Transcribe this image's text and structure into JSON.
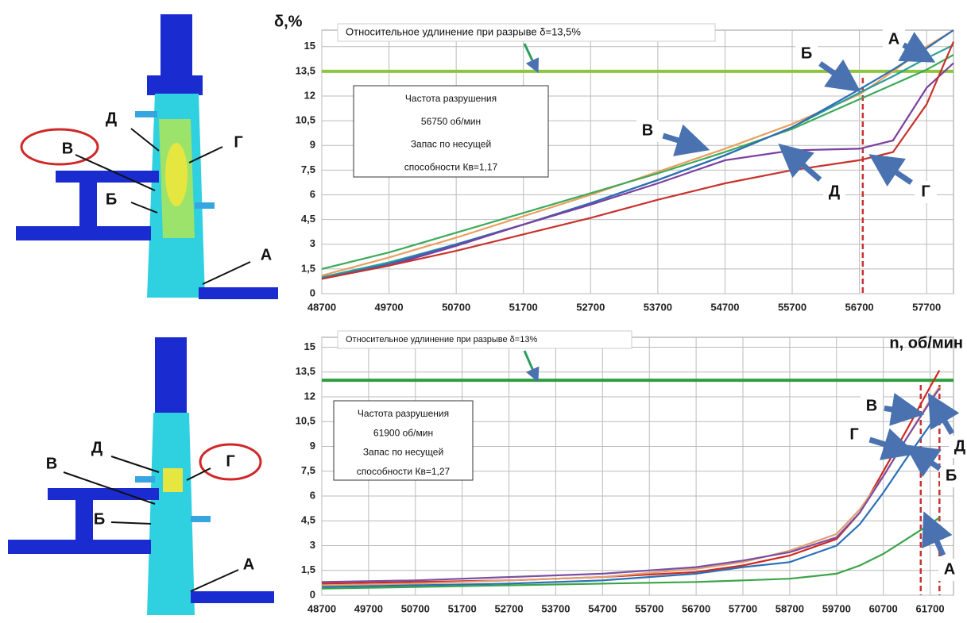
{
  "figures": [
    {
      "labels": [
        "Д",
        "В",
        "Г",
        "Б",
        "А"
      ]
    },
    {
      "labels": [
        "Д",
        "В",
        "Г",
        "Б",
        "А"
      ]
    }
  ],
  "chart_data": [
    {
      "type": "line",
      "y_label": "δ,%",
      "x": [
        48700,
        49700,
        50700,
        51700,
        52700,
        53700,
        54700,
        55700,
        56700,
        57200,
        57700,
        58100
      ],
      "series": [
        {
          "color": "#e8a060",
          "values": [
            1.1,
            2.2,
            3.4,
            4.7,
            6.0,
            7.4,
            8.8,
            10.3,
            12.1,
            13.5,
            15.0,
            16.0
          ]
        },
        {
          "color": "#2a9d9a",
          "values": [
            1.0,
            1.9,
            3.0,
            4.2,
            5.5,
            6.9,
            8.4,
            10.1,
            12.2,
            13.2,
            14.3,
            15.1
          ]
        },
        {
          "color": "#3caa5a",
          "values": [
            1.5,
            2.5,
            3.7,
            4.9,
            6.1,
            7.3,
            8.6,
            10.0,
            11.8,
            12.7,
            13.6,
            14.5
          ]
        },
        {
          "color": "#2f6db5",
          "values": [
            0.9,
            1.8,
            3.0,
            4.2,
            5.5,
            6.9,
            8.4,
            10.1,
            12.4,
            13.6,
            14.9,
            16.0
          ]
        },
        {
          "color": "#7b3fa0",
          "values": [
            0.9,
            1.7,
            2.9,
            4.2,
            5.4,
            6.7,
            8.1,
            8.7,
            8.8,
            9.3,
            12.5,
            14.0
          ]
        },
        {
          "color": "#c8322c",
          "values": [
            0.9,
            1.7,
            2.6,
            3.6,
            4.6,
            5.7,
            6.7,
            7.5,
            8.1,
            8.6,
            11.5,
            15.3
          ]
        }
      ],
      "xlim": [
        48700,
        58100
      ],
      "ylim": [
        0,
        16
      ],
      "xticks": [
        48700,
        49700,
        50700,
        51700,
        52700,
        53700,
        54700,
        55700,
        56700,
        57700
      ],
      "yticks": [
        0,
        {
          "value": 1.5,
          "label": "1,5"
        },
        3,
        {
          "value": 4.5,
          "label": "4,5"
        },
        6,
        {
          "value": 7.5,
          "label": "7,5"
        },
        9,
        {
          "value": 10.5,
          "label": "10,5"
        },
        12,
        {
          "value": 13.5,
          "label": "13,5"
        },
        15
      ],
      "grid": true,
      "hline": {
        "value": 13.5,
        "label": "Относительное удлинение  при разрыве  δ=13,5%",
        "color": "#8cc63f"
      },
      "vlines": [
        56750
      ],
      "note": [
        "Частота разрушения",
        "56750 об/мин",
        "Запас по несущей",
        "способности Кв=1,17"
      ],
      "annotations": [
        "А",
        "Б",
        "В",
        "Г",
        "Д"
      ]
    },
    {
      "type": "line",
      "x_label": "n, об/мин",
      "x": [
        48700,
        50700,
        52700,
        54700,
        56700,
        57700,
        58700,
        59700,
        60200,
        60700,
        61200,
        61700,
        61900
      ],
      "series": [
        {
          "color": "#d0281e",
          "values": [
            0.7,
            0.8,
            0.9,
            1.1,
            1.4,
            1.8,
            2.4,
            3.4,
            5.0,
            7.5,
            10.0,
            12.6,
            13.6
          ]
        },
        {
          "color": "#e0a070",
          "values": [
            0.6,
            0.7,
            0.9,
            1.1,
            1.6,
            2.0,
            2.7,
            3.7,
            5.2,
            7.2,
            9.5,
            11.8,
            12.6
          ]
        },
        {
          "color": "#7a4fa5",
          "values": [
            0.8,
            0.9,
            1.1,
            1.3,
            1.7,
            2.1,
            2.6,
            3.5,
            5.0,
            7.2,
            9.5,
            11.7,
            12.5
          ]
        },
        {
          "color": "#2a70b8",
          "values": [
            0.5,
            0.6,
            0.7,
            0.9,
            1.3,
            1.7,
            2.0,
            3.0,
            4.3,
            6.2,
            8.3,
            10.3,
            11.5
          ]
        },
        {
          "color": "#3aa548",
          "values": [
            0.4,
            0.5,
            0.6,
            0.7,
            0.8,
            0.9,
            1.0,
            1.3,
            1.8,
            2.5,
            3.4,
            4.3,
            4.7
          ]
        }
      ],
      "xlim": [
        48700,
        62200
      ],
      "ylim": [
        0,
        15.6
      ],
      "xticks": [
        48700,
        49700,
        50700,
        51700,
        52700,
        53700,
        54700,
        55700,
        56700,
        57700,
        58700,
        59700,
        60700,
        61700
      ],
      "yticks": [
        0,
        {
          "value": 1.5,
          "label": "1,5"
        },
        3,
        {
          "value": 4.5,
          "label": "4,5"
        },
        6,
        {
          "value": 7.5,
          "label": "7,5"
        },
        9,
        {
          "value": 10.5,
          "label": "10,5"
        },
        12,
        {
          "value": 13.5,
          "label": "13,5"
        },
        15
      ],
      "grid": true,
      "hline": {
        "value": 13,
        "label": "Относительное удлинение  при разрыве  δ=13%",
        "color": "#2e9e3e"
      },
      "vlines": [
        61500,
        61900
      ],
      "note": [
        "Частота разрушения",
        "61900 об/мин",
        "Запас по несущей",
        "способности Кв=1,27"
      ],
      "annotations": [
        "Г",
        "В",
        "Д",
        "Б",
        "А"
      ]
    }
  ]
}
